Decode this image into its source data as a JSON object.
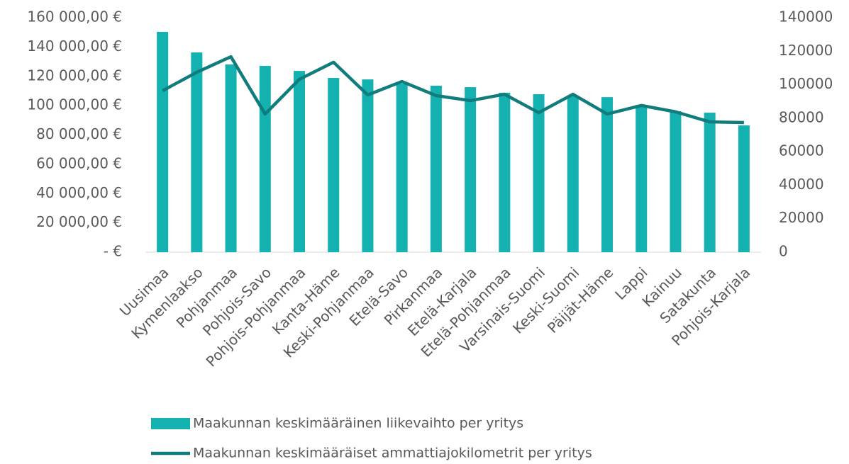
{
  "chart_data": {
    "type": "bar-line",
    "categories": [
      "Uusimaa",
      "Kymenlaakso",
      "Pohjanmaa",
      "Pohjois-Savo",
      "Pohjois-Pohjanmaa",
      "Kanta-Häme",
      "Keski-Pohjanmaa",
      "Etelä-Savo",
      "Pirkanmaa",
      "Etelä-Karjala",
      "Etelä-Pohjanmaa",
      "Varsinais-Suomi",
      "Keski-Suomi",
      "Päijät-Häme",
      "Lappi",
      "Kainuu",
      "Satakunta",
      "Pohjois-Karjala"
    ],
    "series": [
      {
        "name": "Maakunnan keskimääräinen liikevaihto per yritys",
        "type": "bar",
        "color": "#14b1b1",
        "axis": "y",
        "values": [
          150300,
          136300,
          128100,
          127100,
          123700,
          118900,
          117900,
          115000,
          113600,
          112600,
          108800,
          107800,
          107000,
          105800,
          100500,
          96200,
          95200,
          86500
        ]
      },
      {
        "name": "Maakunnan keskimääräiset ammattiajokilometrit per yritys",
        "type": "line",
        "color": "#117c7c",
        "axis": "y2",
        "values": [
          96400,
          107400,
          116700,
          82500,
          103200,
          113400,
          93900,
          101900,
          93500,
          90500,
          94300,
          83300,
          94300,
          82500,
          87600,
          83800,
          77800,
          77400
        ]
      }
    ],
    "ylim": [
      0,
      160000
    ],
    "yticks": [
      {
        "value": 0,
        "label": "-  €"
      },
      {
        "value": 20000,
        "label": "20 000,00 €"
      },
      {
        "value": 40000,
        "label": "40 000,00 €"
      },
      {
        "value": 60000,
        "label": "60 000,00 €"
      },
      {
        "value": 80000,
        "label": "80 000,00 €"
      },
      {
        "value": 100000,
        "label": "100 000,00 €"
      },
      {
        "value": 120000,
        "label": "120 000,00 €"
      },
      {
        "value": 140000,
        "label": "140 000,00 €"
      },
      {
        "value": 160000,
        "label": "160 000,00 €"
      }
    ],
    "y2lim": [
      0,
      140000
    ],
    "y2ticks": [
      0,
      20000,
      40000,
      60000,
      80000,
      100000,
      120000,
      140000
    ],
    "grid": false
  }
}
